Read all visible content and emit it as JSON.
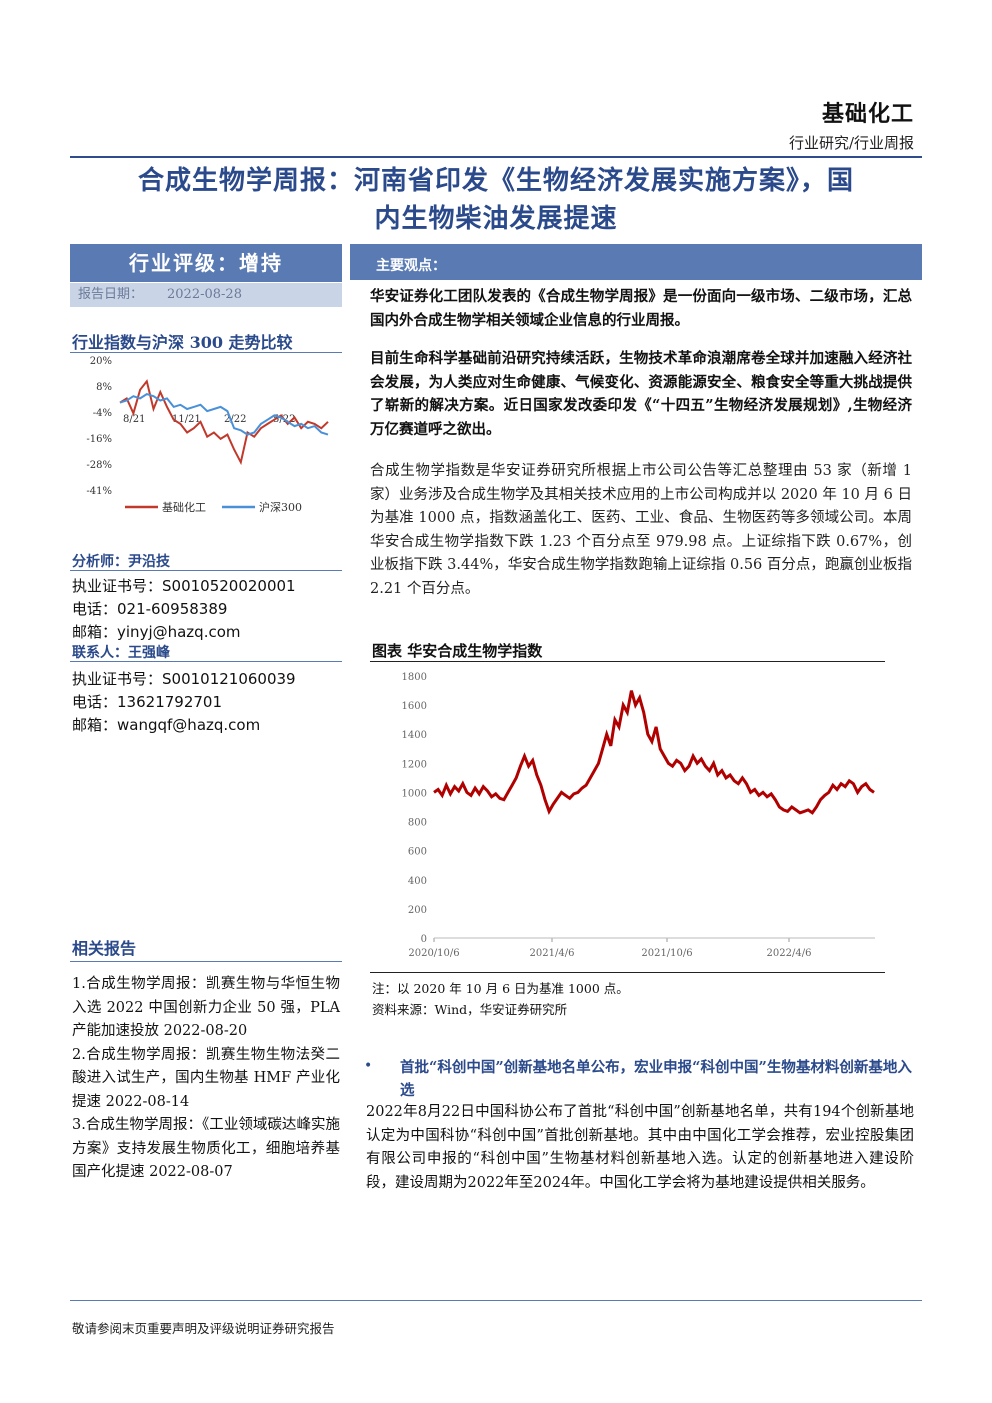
{
  "header": {
    "sector": "基础化工",
    "subtype": "行业研究/行业周报"
  },
  "title": {
    "line1": "合成生物学周报：河南省印发《生物经济发展实施方案》，国",
    "line2": "内生物柴油发展提速"
  },
  "rating": {
    "label": "行业评级：增持",
    "date_label": "报告日期：",
    "date_value": "2022-08-28"
  },
  "index_chart": {
    "heading": "行业指数与沪深 300 走势比较",
    "chart_data": {
      "type": "line",
      "title": "",
      "x_ticks": [
        "8/21",
        "11/21",
        "2/22",
        "5/22"
      ],
      "y_ticks": [
        "20%",
        "8%",
        "-4%",
        "-16%",
        "-28%",
        "-41%"
      ],
      "ylim": [
        -41,
        20
      ],
      "series": [
        {
          "name": "基础化工",
          "color": "#c0392b",
          "values": [
            0,
            2,
            -5,
            6,
            10,
            -3,
            5,
            -2,
            -8,
            -10,
            -14,
            -12,
            -9,
            -16,
            -14,
            -17,
            -15,
            -22,
            -28,
            -14,
            -16,
            -12,
            -10,
            -8,
            -6,
            -10,
            -7,
            -12,
            -9,
            -10,
            -12,
            -9
          ]
        },
        {
          "name": "沪深300",
          "color": "#4a90d9",
          "values": [
            0,
            1,
            3,
            2,
            4,
            3,
            1,
            2,
            -2,
            -1,
            -3,
            -2,
            -1,
            -4,
            -3,
            -2,
            -4,
            -12,
            -13,
            -15,
            -14,
            -10,
            -8,
            -6,
            -7,
            -9,
            -11,
            -10,
            -12,
            -11,
            -14,
            -15
          ]
        }
      ]
    }
  },
  "analyst": {
    "label": "分析师：尹沿技",
    "cert_label": "执业证书号：",
    "cert": "S0010520020001",
    "phone_label": "电话：",
    "phone": "021-60958389",
    "email_label": "邮箱：",
    "email": "yinyj@hazq.com"
  },
  "contact": {
    "label": "联系人：王强峰",
    "cert_label": "执业证书号：",
    "cert": "S0010121060039",
    "phone_label": "电话：",
    "phone": "13621792701",
    "email_label": "邮箱：",
    "email": "wangqf@hazq.com"
  },
  "related": {
    "heading": "相关报告",
    "items": [
      "1.合成生物学周报：凯赛生物与华恒生物入选 2022 中国创新力企业 50 强，PLA 产能加速投放 2022-08-20",
      "2.合成生物学周报：凯赛生物生物法癸二酸进入试生产，国内生物基 HMF 产业化提速 2022-08-14",
      "3.合成生物学周报：《工业领域碳达峰实施方案》支持发展生物质化工，细胞培养基国产化提速 2022-08-07"
    ]
  },
  "main": {
    "bar_label": "主要观点：",
    "p1": "华安证券化工团队发表的《合成生物学周报》是一份面向一级市场、二级市场，汇总国内外合成生物学相关领域企业信息的行业周报。",
    "p2": "目前生命科学基础前沿研究持续活跃，生物技术革命浪潮席卷全球并加速融入经济社会发展，为人类应对生命健康、气候变化、资源能源安全、粮食安全等重大挑战提供了崭新的解决方案。近日国家发改委印发《“十四五”生物经济发展规划》,生物经济万亿赛道呼之欲出。",
    "p3": "合成生物学指数是华安证券研究所根据上市公司公告等汇总整理由 53 家（新增 1 家）业务涉及合成生物学及其相关技术应用的上市公司构成并以 2020 年 10 月 6 日为基准 1000 点，指数涵盖化工、医药、工业、食品、生物医药等多领域公司。本周华安合成生物学指数下跌 1.23 个百分点至 979.98 点。上证综指下跌 0.67%，创业板指下跌 3.44%，华安合成生物学指数跑输上证综指 0.56 百分点，跑赢创业板指 2.21 个百分点。"
  },
  "figure": {
    "title": "图表 华安合成生物学指数",
    "note": "注：以 2020 年 10 月 6 日为基准 1000 点。",
    "source": "资料来源：Wind，华安证券研究所",
    "chart_data": {
      "type": "line",
      "title": "",
      "x_ticks": [
        "2020/10/6",
        "2021/4/6",
        "2021/10/6",
        "2022/4/6"
      ],
      "y_ticks": [
        0,
        200,
        400,
        600,
        800,
        1000,
        1200,
        1400,
        1600,
        1800
      ],
      "ylim": [
        0,
        1800
      ],
      "series": [
        {
          "name": "华安合成生物学指数",
          "color": "#b00000",
          "values": [
            1000,
            1020,
            980,
            1050,
            990,
            1040,
            1010,
            1060,
            1000,
            980,
            1030,
            990,
            1040,
            1010,
            970,
            990,
            960,
            950,
            1000,
            1050,
            1100,
            1180,
            1250,
            1180,
            1220,
            1120,
            1050,
            950,
            870,
            920,
            960,
            1000,
            980,
            960,
            990,
            1000,
            1030,
            1050,
            1100,
            1150,
            1200,
            1300,
            1400,
            1320,
            1500,
            1450,
            1600,
            1550,
            1700,
            1600,
            1650,
            1550,
            1400,
            1350,
            1450,
            1300,
            1250,
            1200,
            1180,
            1220,
            1200,
            1150,
            1180,
            1250,
            1200,
            1230,
            1180,
            1150,
            1200,
            1120,
            1150,
            1100,
            1120,
            1080,
            1060,
            1100,
            1060,
            1000,
            1020,
            980,
            1000,
            970,
            990,
            950,
            900,
            880,
            870,
            900,
            880,
            860,
            870,
            880,
            860,
            900,
            950,
            980,
            1000,
            1050,
            1020,
            1060,
            1040,
            1080,
            1060,
            1000,
            1040,
            1060,
            1020,
            1000
          ]
        }
      ]
    }
  },
  "news": {
    "bullet": "•",
    "title": "首批“科创中国”创新基地名单公布，宏业申报“科创中国”生物基材料创新基地入选",
    "body": "2022年8月22日中国科协公布了首批“科创中国”创新基地名单，共有194个创新基地认定为中国科协“科创中国”首批创新基地。其中由中国化工学会推荐，宏业控股集团有限公司申报的“科创中国”生物基材料创新基地入选。认定的创新基地进入建设阶段，建设周期为2022年至2024年。中国化工学会将为基地建设提供相关服务。"
  },
  "footer": {
    "text": "敬请参阅末页重要声明及评级说明证券研究报告"
  }
}
